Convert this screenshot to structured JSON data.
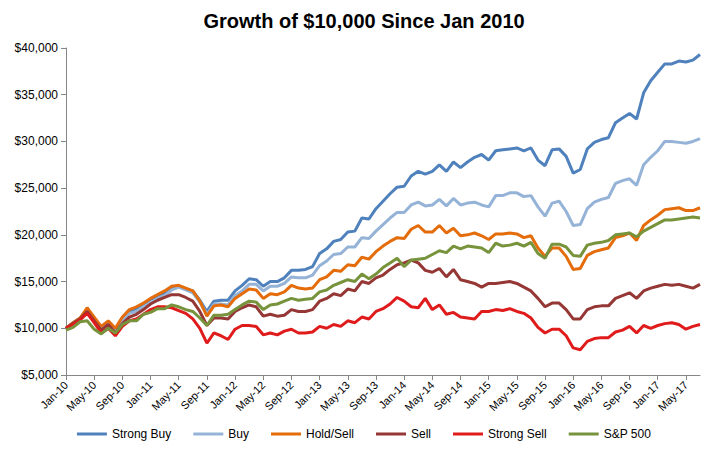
{
  "chart_data": {
    "type": "line",
    "title": "Growth of $10,000 Since Jan 2010",
    "categories": [
      "Jan-10",
      null,
      null,
      null,
      "May-10",
      null,
      null,
      null,
      "Sep-10",
      null,
      null,
      null,
      "Jan-11",
      null,
      null,
      null,
      "May-11",
      null,
      null,
      null,
      "Sep-11",
      null,
      null,
      null,
      "Jan-12",
      null,
      null,
      null,
      "May-12",
      null,
      null,
      null,
      "Sep-12",
      null,
      null,
      null,
      "Jan-13",
      null,
      null,
      null,
      "May-13",
      null,
      null,
      null,
      "Sep-13",
      null,
      null,
      null,
      "Jan-14",
      null,
      null,
      null,
      "May-14",
      null,
      null,
      null,
      "Sep-14",
      null,
      null,
      null,
      "Jan-15",
      null,
      null,
      null,
      "May-15",
      null,
      null,
      null,
      "Sep-15",
      null,
      null,
      null,
      "Jan-16",
      null,
      null,
      null,
      "May-16",
      null,
      null,
      null,
      "Sep-16",
      null,
      null,
      null,
      "Jan-17",
      null,
      null,
      null,
      "May-17",
      null,
      null
    ],
    "series": [
      {
        "name": "Strong Buy",
        "color": "#4f81bd",
        "values": [
          10000,
          10600,
          11100,
          12000,
          11000,
          10000,
          10700,
          9800,
          11000,
          11800,
          12100,
          12600,
          13100,
          13500,
          13800,
          14300,
          14500,
          14200,
          14000,
          13000,
          11800,
          12900,
          13000,
          13000,
          14000,
          14600,
          15300,
          15200,
          14500,
          15000,
          15000,
          15400,
          16200,
          16200,
          16300,
          16600,
          18000,
          18500,
          19300,
          19500,
          20300,
          20400,
          21800,
          21700,
          22800,
          23600,
          24400,
          25100,
          25200,
          26300,
          26800,
          26500,
          26800,
          27500,
          26800,
          27800,
          27200,
          27800,
          28300,
          28600,
          28000,
          29000,
          29100,
          29200,
          29300,
          29000,
          29300,
          28000,
          27400,
          29100,
          29200,
          28400,
          26600,
          27000,
          29200,
          29900,
          30200,
          30400,
          32000,
          32500,
          33000,
          32400,
          35200,
          36500,
          37400,
          38300,
          38300,
          38600,
          38500,
          38700,
          39300
        ]
      },
      {
        "name": "Buy",
        "color": "#95b3d7",
        "values": [
          10000,
          10500,
          11000,
          11900,
          11000,
          10000,
          10600,
          9700,
          10800,
          11600,
          11800,
          12300,
          12700,
          13200,
          13500,
          14100,
          14400,
          14100,
          13800,
          12800,
          11500,
          12600,
          12600,
          12500,
          13500,
          14000,
          14700,
          14700,
          14000,
          14500,
          14500,
          14800,
          15500,
          15400,
          15400,
          15700,
          16700,
          17200,
          17900,
          18000,
          18700,
          18700,
          19700,
          19600,
          20400,
          21100,
          21800,
          22400,
          22400,
          23200,
          23500,
          23100,
          23200,
          23800,
          23100,
          23900,
          23200,
          23400,
          23500,
          23200,
          23000,
          24200,
          24200,
          24500,
          24500,
          24100,
          24200,
          23000,
          22000,
          23400,
          23600,
          22500,
          21000,
          21100,
          22800,
          23500,
          23800,
          24000,
          25500,
          25800,
          26000,
          25300,
          27500,
          28300,
          29000,
          30000,
          30000,
          29900,
          29800,
          30000,
          30300
        ]
      },
      {
        "name": "Hold/Sell",
        "color": "#e46c0a",
        "values": [
          10000,
          10600,
          11100,
          12200,
          11200,
          10200,
          10800,
          10000,
          11200,
          12000,
          12300,
          12700,
          13200,
          13600,
          14000,
          14500,
          14600,
          14300,
          14000,
          12900,
          11300,
          12400,
          12500,
          12300,
          13200,
          13700,
          14200,
          14100,
          13200,
          13700,
          13600,
          13900,
          14600,
          14300,
          14200,
          14300,
          15200,
          15500,
          16200,
          16100,
          16800,
          16700,
          17600,
          17400,
          18200,
          18800,
          19300,
          19700,
          19600,
          20600,
          21000,
          20300,
          20300,
          21000,
          20200,
          20700,
          19900,
          20000,
          20200,
          19900,
          19500,
          20100,
          20100,
          20200,
          20100,
          19700,
          19900,
          18600,
          17700,
          18600,
          18600,
          17700,
          16300,
          16400,
          17800,
          18200,
          18400,
          18600,
          19700,
          19900,
          20200,
          19400,
          21000,
          21600,
          22100,
          22700,
          22800,
          22900,
          22600,
          22600,
          22900
        ]
      },
      {
        "name": "Sell",
        "color": "#953735",
        "values": [
          10000,
          10500,
          11000,
          11800,
          10800,
          9800,
          10400,
          9500,
          10500,
          11200,
          11500,
          12000,
          12600,
          13000,
          13300,
          13600,
          13600,
          13300,
          12900,
          11800,
          10300,
          11100,
          11100,
          11000,
          11800,
          12200,
          12500,
          12300,
          11300,
          11500,
          11300,
          11400,
          12000,
          11800,
          11800,
          12000,
          12900,
          13200,
          13700,
          13500,
          14200,
          14000,
          15000,
          14800,
          15400,
          15700,
          16300,
          16800,
          17000,
          17300,
          17000,
          16200,
          16000,
          16400,
          15500,
          16300,
          15200,
          15000,
          14800,
          14400,
          14800,
          14800,
          14900,
          15000,
          14800,
          14400,
          14000,
          13200,
          12300,
          12700,
          12700,
          12000,
          11000,
          11000,
          12000,
          12300,
          12400,
          12400,
          13200,
          13500,
          13800,
          13200,
          14000,
          14300,
          14500,
          14700,
          14600,
          14700,
          14500,
          14300,
          14700
        ]
      },
      {
        "name": "Strong Sell",
        "color": "#e01b1b",
        "values": [
          10000,
          10400,
          10900,
          11600,
          10600,
          9500,
          10000,
          9200,
          10200,
          10800,
          11000,
          11500,
          12000,
          12300,
          12300,
          12200,
          11900,
          11600,
          11000,
          10000,
          8400,
          9500,
          9200,
          8800,
          9900,
          10300,
          10300,
          10200,
          9300,
          9500,
          9300,
          9700,
          9900,
          9500,
          9500,
          9600,
          10200,
          10000,
          10400,
          10200,
          10800,
          10600,
          11200,
          11000,
          11800,
          12100,
          12600,
          13300,
          12900,
          12300,
          12200,
          13200,
          12000,
          12500,
          11500,
          11700,
          11200,
          11100,
          11000,
          11800,
          11800,
          12000,
          11900,
          12100,
          11800,
          11600,
          11100,
          10100,
          9500,
          9900,
          9900,
          9200,
          7900,
          7700,
          8600,
          8900,
          9000,
          9000,
          9600,
          9800,
          10200,
          9500,
          10300,
          10000,
          10300,
          10500,
          10600,
          10400,
          9900,
          10200,
          10400
        ]
      },
      {
        "name": "S&P 500",
        "color": "#77933c",
        "values": [
          9800,
          10100,
          10700,
          10800,
          9900,
          9400,
          10000,
          9500,
          10400,
          10800,
          10800,
          11500,
          11700,
          12100,
          12100,
          12500,
          12300,
          12000,
          11800,
          11100,
          10300,
          11400,
          11400,
          11500,
          12000,
          12500,
          12900,
          12800,
          12000,
          12500,
          12600,
          12900,
          13200,
          13000,
          13100,
          13200,
          13900,
          14100,
          14600,
          14900,
          15200,
          15000,
          15800,
          15300,
          15800,
          16500,
          17000,
          17500,
          16600,
          17300,
          17400,
          17500,
          17900,
          18300,
          18100,
          18800,
          18500,
          18800,
          18700,
          18600,
          18100,
          19100,
          18800,
          18900,
          19100,
          18800,
          19200,
          18000,
          17500,
          19000,
          19000,
          18700,
          17800,
          17700,
          18900,
          19100,
          19200,
          19400,
          20000,
          20100,
          20200,
          19800,
          20400,
          20800,
          21200,
          21600,
          21600,
          21700,
          21800,
          21900,
          21800
        ]
      }
    ],
    "ylim": [
      5000,
      40000
    ],
    "yticks": [
      {
        "value": 5000,
        "label": "$5,000"
      },
      {
        "value": 10000,
        "label": "$10,000"
      },
      {
        "value": 15000,
        "label": "$15,000"
      },
      {
        "value": 20000,
        "label": "$20,000"
      },
      {
        "value": 25000,
        "label": "$25,000"
      },
      {
        "value": 30000,
        "label": "$30,000"
      },
      {
        "value": 35000,
        "label": "$35,000"
      },
      {
        "value": 40000,
        "label": "$40,000"
      }
    ],
    "grid": false,
    "legend": "bottom"
  }
}
